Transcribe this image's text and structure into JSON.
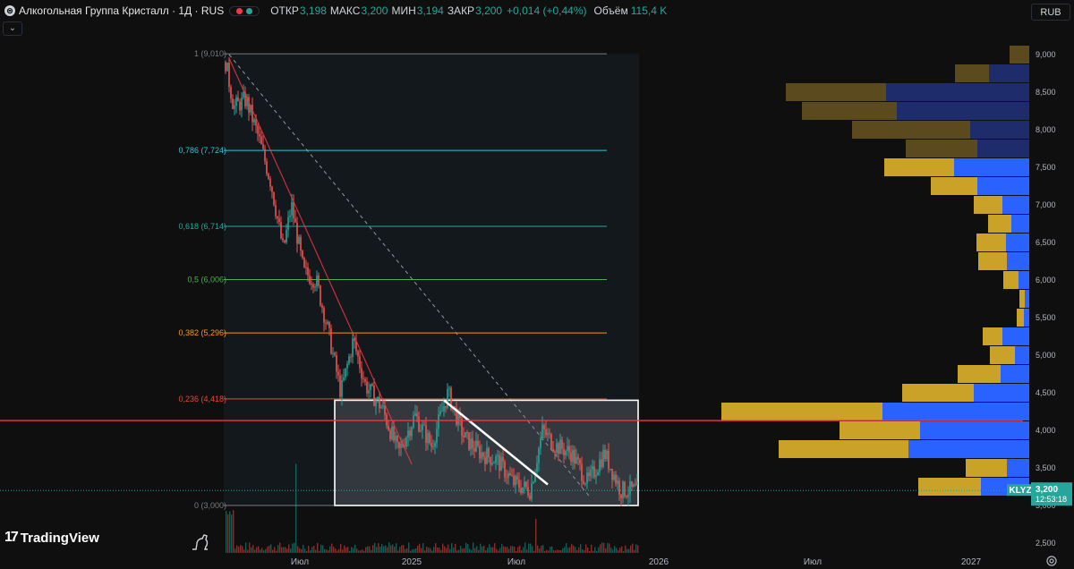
{
  "header": {
    "title": "Алкогольная Группа Кристалл · 1Д · RUS",
    "ohlc": [
      {
        "label": "ОТКР",
        "value": "3,198"
      },
      {
        "label": "МАКС",
        "value": "3,200"
      },
      {
        "label": "МИН",
        "value": "3,194"
      },
      {
        "label": "ЗАКР",
        "value": "3,200"
      }
    ],
    "change": "+0,014 (+0,44%)",
    "volume_label": "Объём",
    "volume_value": "115,4 K",
    "currency": "RUB",
    "collapse_glyph": "⌄"
  },
  "brand": {
    "name": "TradingView",
    "mark": "17"
  },
  "price_label": {
    "ticker": "KLYZ",
    "price": "3,200",
    "countdown": "12:53:18"
  },
  "colors": {
    "background": "#0f0f0f",
    "up": "#26a69a",
    "down": "#ef5350",
    "fib_786": "#26c6da",
    "fib_618": "#26a69a",
    "fib_05": "#4caf50",
    "fib_382": "#ff9800",
    "fib_236": "#f44336",
    "vp_buy": "#2962ff",
    "vp_sell": "#c9a227",
    "current_price": "#26a69a",
    "horizontal_line": "#f23645"
  },
  "chart_data": {
    "type": "candlestick",
    "instrument": "Алкогольная Группа Кристалл",
    "interval": "1Д",
    "y_axis": {
      "min": 2.5,
      "max": 9.0,
      "ticks": [
        "9,000",
        "8,500",
        "8,000",
        "7,500",
        "7,000",
        "6,500",
        "6,000",
        "5,500",
        "5,000",
        "4,500",
        "4,000",
        "3,500",
        "3,000",
        "2,500"
      ],
      "tick_values": [
        9,
        8.5,
        8,
        7.5,
        7,
        6.5,
        6,
        5.5,
        5,
        4.5,
        4,
        3.5,
        3,
        2.5
      ]
    },
    "x_axis": {
      "ticks": [
        "Июл",
        "2025",
        "Июл",
        "2026",
        "Июл",
        "2027"
      ]
    },
    "price_path": [
      {
        "t": 0,
        "price": 8.9
      },
      {
        "t": 2,
        "price": 8.3
      },
      {
        "t": 5,
        "price": 8.4
      },
      {
        "t": 8,
        "price": 7.9
      },
      {
        "t": 11,
        "price": 7.3
      },
      {
        "t": 14,
        "price": 6.4
      },
      {
        "t": 16,
        "price": 7.0
      },
      {
        "t": 19,
        "price": 6.1
      },
      {
        "t": 22,
        "price": 6.0
      },
      {
        "t": 25,
        "price": 5.3
      },
      {
        "t": 28,
        "price": 4.5
      },
      {
        "t": 31,
        "price": 5.2
      },
      {
        "t": 34,
        "price": 4.6
      },
      {
        "t": 38,
        "price": 4.3
      },
      {
        "t": 42,
        "price": 3.7
      },
      {
        "t": 46,
        "price": 4.2
      },
      {
        "t": 50,
        "price": 3.8
      },
      {
        "t": 54,
        "price": 4.5
      },
      {
        "t": 58,
        "price": 3.9
      },
      {
        "t": 62,
        "price": 3.7
      },
      {
        "t": 66,
        "price": 3.6
      },
      {
        "t": 70,
        "price": 3.3
      },
      {
        "t": 74,
        "price": 3.2
      },
      {
        "t": 77,
        "price": 4.0
      },
      {
        "t": 80,
        "price": 3.8
      },
      {
        "t": 84,
        "price": 3.7
      },
      {
        "t": 88,
        "price": 3.3
      },
      {
        "t": 92,
        "price": 3.7
      },
      {
        "t": 96,
        "price": 3.2
      },
      {
        "t": 100,
        "price": 3.2
      }
    ],
    "fibonacci": [
      {
        "level": "1",
        "price": 9.01,
        "label": "1 (9,010)"
      },
      {
        "level": "0.786",
        "price": 7.724,
        "label": "0,786 (7,724)"
      },
      {
        "level": "0.618",
        "price": 6.714,
        "label": "0,618 (6,714)"
      },
      {
        "level": "0.5",
        "price": 6.006,
        "label": "0,5 (6,006)"
      },
      {
        "level": "0.382",
        "price": 5.296,
        "label": "0,382 (5,296)"
      },
      {
        "level": "0.236",
        "price": 4.418,
        "label": "0,236 (4,418)"
      },
      {
        "level": "0",
        "price": 3.0,
        "label": "0 (3,000)"
      }
    ],
    "horizontal_line": 4.13,
    "current_price": 3.2,
    "rectangle": {
      "price_top": 4.4,
      "price_bottom": 3.0
    },
    "volume_profile": [
      {
        "price": 9.0,
        "buy": 0,
        "sell": 22
      },
      {
        "price": 8.75,
        "buy": 45,
        "sell": 38
      },
      {
        "price": 8.5,
        "buy": 160,
        "sell": 112
      },
      {
        "price": 8.25,
        "buy": 148,
        "sell": 106
      },
      {
        "price": 8.0,
        "buy": 66,
        "sell": 132
      },
      {
        "price": 7.75,
        "buy": 58,
        "sell": 80
      },
      {
        "price": 7.5,
        "buy": 84,
        "sell": 78
      },
      {
        "price": 7.25,
        "buy": 58,
        "sell": 52
      },
      {
        "price": 7.0,
        "buy": 30,
        "sell": 32
      },
      {
        "price": 6.75,
        "buy": 20,
        "sell": 26
      },
      {
        "price": 6.5,
        "buy": 26,
        "sell": 33
      },
      {
        "price": 6.25,
        "buy": 25,
        "sell": 32
      },
      {
        "price": 6.0,
        "buy": 12,
        "sell": 17
      },
      {
        "price": 5.75,
        "buy": 5,
        "sell": 6
      },
      {
        "price": 5.5,
        "buy": 6,
        "sell": 8
      },
      {
        "price": 5.25,
        "buy": 30,
        "sell": 22
      },
      {
        "price": 5.0,
        "buy": 16,
        "sell": 28
      },
      {
        "price": 4.75,
        "buy": 32,
        "sell": 48
      },
      {
        "price": 4.5,
        "buy": 62,
        "sell": 80
      },
      {
        "price": 4.25,
        "buy": 164,
        "sell": 180
      },
      {
        "price": 4.0,
        "buy": 122,
        "sell": 90
      },
      {
        "price": 3.75,
        "buy": 135,
        "sell": 145
      },
      {
        "price": 3.5,
        "buy": 25,
        "sell": 46
      },
      {
        "price": 3.25,
        "buy": 54,
        "sell": 70
      }
    ],
    "grid": false,
    "legend": "none"
  }
}
